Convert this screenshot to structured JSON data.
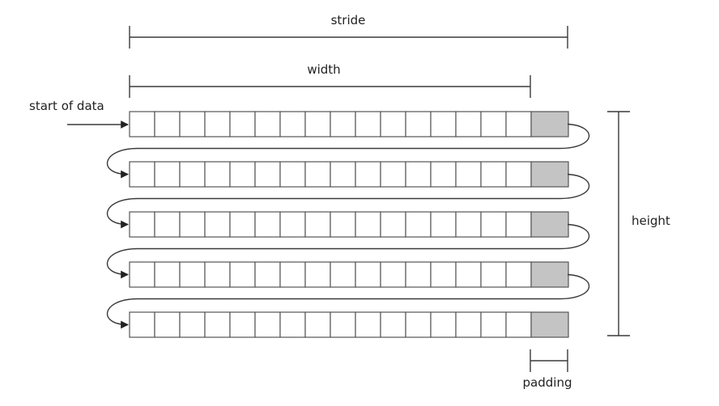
{
  "labels": {
    "stride": "stride",
    "width": "width",
    "start": "start of data",
    "height": "height",
    "padding": "padding"
  },
  "grid": {
    "rows": 5,
    "data_cells_per_row": 16,
    "padding_cells_per_row": 1
  },
  "colors": {
    "padding_fill": "#c4c4c4",
    "cell_fill": "#ffffff",
    "line": "#3a3a3a"
  }
}
